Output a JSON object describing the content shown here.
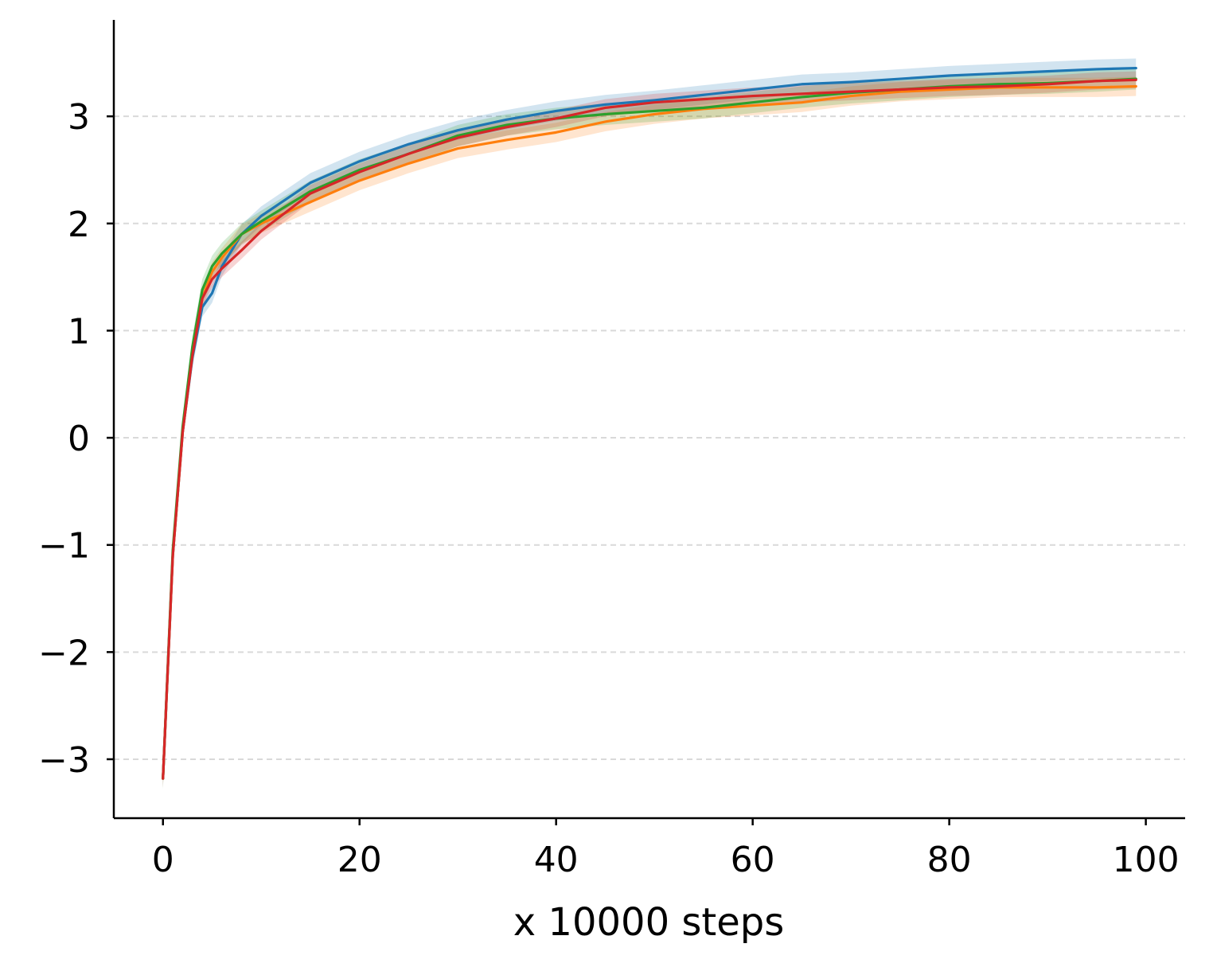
{
  "chart_data": {
    "type": "line",
    "title": "",
    "xlabel": "x 10000 steps",
    "ylabel": "",
    "xlim": [
      -5,
      104
    ],
    "ylim": [
      -3.55,
      3.9
    ],
    "x_ticks": [
      0,
      20,
      40,
      60,
      80,
      100
    ],
    "x_tick_labels": [
      "0",
      "20",
      "40",
      "60",
      "80",
      "100"
    ],
    "y_ticks": [
      3,
      2,
      1,
      0,
      -1,
      -2,
      -3
    ],
    "y_tick_labels": [
      "3",
      "2",
      "1",
      "0",
      "−1",
      "−2",
      "−3"
    ],
    "grid": "horizontal dashed",
    "legend": "none",
    "band_opacity": 0.2,
    "series": [
      {
        "color": "#1f77b4",
        "x": [
          0,
          1,
          2,
          3,
          4,
          5,
          6,
          8,
          10,
          15,
          20,
          25,
          30,
          35,
          40,
          45,
          50,
          55,
          60,
          65,
          70,
          75,
          80,
          85,
          90,
          95,
          99
        ],
        "y": [
          -3.18,
          -1.1,
          0.05,
          0.75,
          1.22,
          1.35,
          1.6,
          1.9,
          2.07,
          2.38,
          2.58,
          2.74,
          2.87,
          2.97,
          3.05,
          3.11,
          3.15,
          3.2,
          3.25,
          3.3,
          3.32,
          3.35,
          3.38,
          3.4,
          3.42,
          3.44,
          3.45
        ],
        "band": 0.09
      },
      {
        "color": "#ff7f0e",
        "x": [
          0,
          1,
          2,
          3,
          4,
          5,
          6,
          8,
          10,
          15,
          20,
          25,
          30,
          35,
          40,
          45,
          50,
          55,
          60,
          65,
          70,
          75,
          80,
          85,
          90,
          95,
          99
        ],
        "y": [
          -3.18,
          -1.1,
          0.05,
          0.78,
          1.3,
          1.55,
          1.68,
          1.9,
          2.0,
          2.2,
          2.4,
          2.56,
          2.7,
          2.78,
          2.85,
          2.95,
          3.02,
          3.07,
          3.1,
          3.13,
          3.19,
          3.23,
          3.25,
          3.27,
          3.27,
          3.27,
          3.28
        ],
        "band": 0.09
      },
      {
        "color": "#2ca02c",
        "x": [
          0,
          1,
          2,
          3,
          4,
          5,
          6,
          8,
          10,
          15,
          20,
          25,
          30,
          35,
          40,
          45,
          50,
          55,
          60,
          65,
          70,
          75,
          80,
          85,
          90,
          95,
          99
        ],
        "y": [
          -3.18,
          -1.05,
          0.1,
          0.85,
          1.38,
          1.6,
          1.72,
          1.9,
          2.02,
          2.3,
          2.5,
          2.65,
          2.82,
          2.92,
          2.98,
          3.02,
          3.05,
          3.08,
          3.13,
          3.18,
          3.22,
          3.25,
          3.28,
          3.3,
          3.31,
          3.33,
          3.35
        ],
        "band": 0.1
      },
      {
        "color": "#d62728",
        "x": [
          0,
          1,
          2,
          3,
          4,
          5,
          6,
          8,
          10,
          15,
          20,
          25,
          30,
          35,
          40,
          45,
          50,
          55,
          60,
          65,
          70,
          75,
          80,
          85,
          90,
          95,
          99
        ],
        "y": [
          -3.18,
          -1.1,
          0.05,
          0.77,
          1.3,
          1.48,
          1.58,
          1.75,
          1.93,
          2.28,
          2.48,
          2.65,
          2.8,
          2.9,
          2.98,
          3.08,
          3.13,
          3.16,
          3.19,
          3.21,
          3.23,
          3.25,
          3.27,
          3.28,
          3.3,
          3.33,
          3.34
        ],
        "band": 0.08
      }
    ]
  }
}
